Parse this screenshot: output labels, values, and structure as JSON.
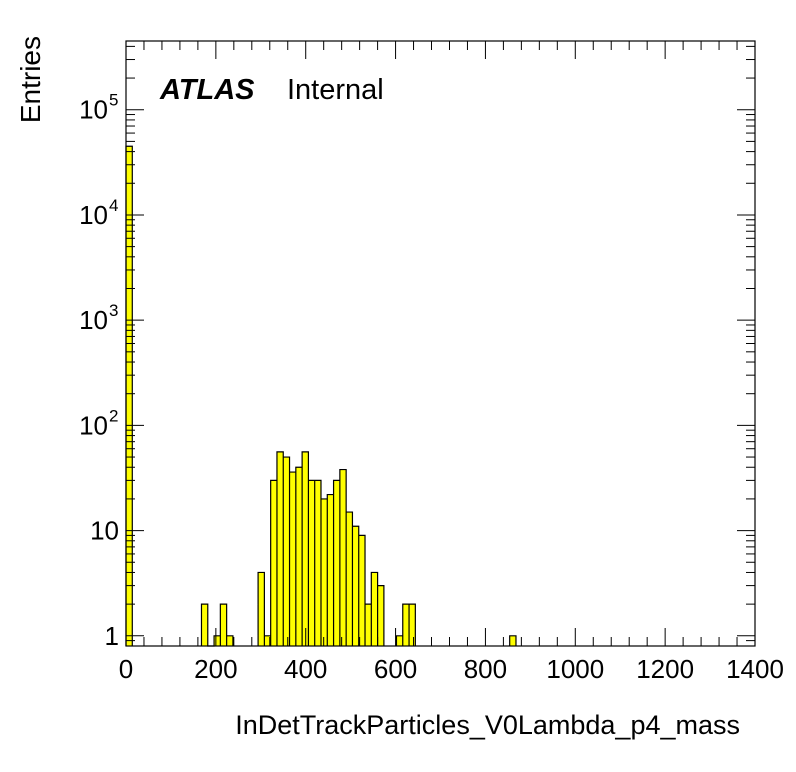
{
  "watermark": {
    "experiment": "ATLAS",
    "status": "Internal"
  },
  "chart_data": {
    "type": "histogram",
    "xlabel": "InDetTrackParticles_V0Lambda_p4_mass",
    "ylabel": "Entries",
    "xlim": [
      0,
      1400
    ],
    "ylim": [
      0.8,
      450000
    ],
    "yscale": "log",
    "bin_width": 14,
    "x_ticks": [
      "0",
      "200",
      "400",
      "600",
      "800",
      "1000",
      "1200",
      "1400"
    ],
    "y_ticks": [
      {
        "value": 1,
        "label": "1",
        "exp": ""
      },
      {
        "value": 10,
        "label": "10",
        "exp": ""
      },
      {
        "value": 100,
        "label": "10",
        "exp": "2"
      },
      {
        "value": 1000,
        "label": "10",
        "exp": "3"
      },
      {
        "value": 10000,
        "label": "10",
        "exp": "4"
      },
      {
        "value": 100000,
        "label": "10",
        "exp": "5"
      }
    ],
    "fill_color": "#ffff00",
    "line_color": "#000000",
    "bins": [
      {
        "x": 0,
        "y": 45000
      },
      {
        "x": 168,
        "y": 2
      },
      {
        "x": 182,
        "y": 0
      },
      {
        "x": 196,
        "y": 1
      },
      {
        "x": 210,
        "y": 2
      },
      {
        "x": 224,
        "y": 1
      },
      {
        "x": 294,
        "y": 4
      },
      {
        "x": 308,
        "y": 1
      },
      {
        "x": 322,
        "y": 30
      },
      {
        "x": 336,
        "y": 56
      },
      {
        "x": 350,
        "y": 50
      },
      {
        "x": 364,
        "y": 36
      },
      {
        "x": 378,
        "y": 40
      },
      {
        "x": 392,
        "y": 56
      },
      {
        "x": 406,
        "y": 30
      },
      {
        "x": 420,
        "y": 30
      },
      {
        "x": 434,
        "y": 20
      },
      {
        "x": 448,
        "y": 22
      },
      {
        "x": 462,
        "y": 30
      },
      {
        "x": 476,
        "y": 38
      },
      {
        "x": 490,
        "y": 15
      },
      {
        "x": 504,
        "y": 11
      },
      {
        "x": 518,
        "y": 9
      },
      {
        "x": 532,
        "y": 2
      },
      {
        "x": 546,
        "y": 4
      },
      {
        "x": 560,
        "y": 3
      },
      {
        "x": 602,
        "y": 1
      },
      {
        "x": 616,
        "y": 2
      },
      {
        "x": 630,
        "y": 2
      },
      {
        "x": 854,
        "y": 1
      }
    ]
  }
}
